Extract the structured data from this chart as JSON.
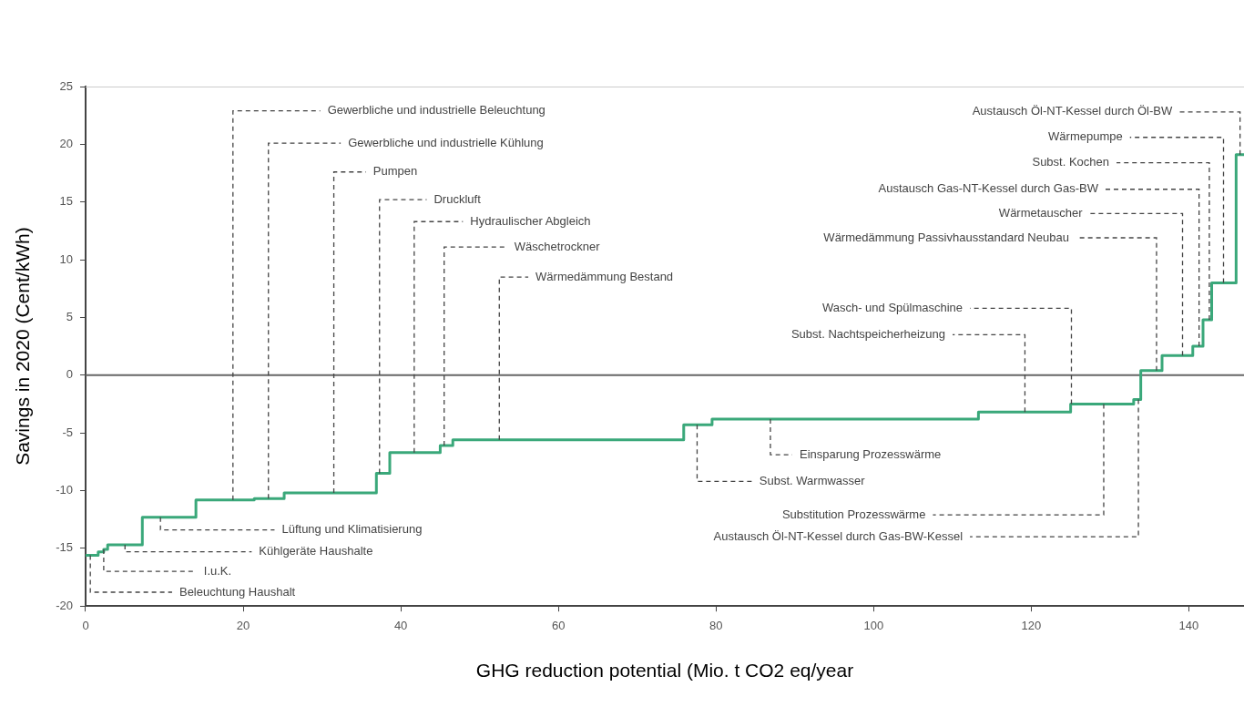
{
  "chart_data": {
    "type": "step",
    "xlabel": "GHG reduction potential (Mio. t CO2 eq/year",
    "ylabel": "Savings in 2020 (Cent/kWh)",
    "x": [
      0,
      1.6,
      2.3,
      2.8,
      5.0,
      7.2,
      9.5,
      14.0,
      21.4,
      25.2,
      31.5,
      36.9,
      38.6,
      41.7,
      45.0,
      46.6,
      52.5,
      75.9,
      79.5,
      86.9,
      113.3,
      119.2,
      125.0,
      133.0,
      133.6,
      133.9,
      135.9,
      136.6,
      139.2,
      140.5,
      141.3,
      141.8,
      142.6,
      142.9,
      144.4,
      146.0,
      147
    ],
    "series": [
      {
        "color": "#3aa87a",
        "values": [
          -15.6,
          -15.3,
          -15.1,
          -14.7,
          -14.7,
          -12.3,
          -12.3,
          -10.8,
          -10.7,
          -10.2,
          -10.2,
          -8.5,
          -6.7,
          -6.7,
          -6.1,
          -5.6,
          -5.6,
          -4.3,
          -3.8,
          -3.8,
          -3.2,
          -3.2,
          -2.5,
          -2.1,
          -2.1,
          0.4,
          0.4,
          1.7,
          1.7,
          2.5,
          2.5,
          4.8,
          4.8,
          8.0,
          8.0,
          19.1,
          19.1
        ]
      }
    ],
    "xlim": [
      0,
      147
    ],
    "xticks": [
      0,
      20,
      40,
      60,
      80,
      100,
      120,
      140
    ],
    "ylim": [
      -20,
      25
    ],
    "yticks": [
      -20,
      -15,
      -10,
      -5,
      0,
      5,
      10,
      15,
      20,
      25
    ],
    "grid": false,
    "legend": false,
    "marker": "none",
    "line_style": "solid",
    "ref_lines": [
      {
        "axis": "y",
        "value": 0,
        "color": "#666666"
      }
    ],
    "annotations": [
      {
        "text": "Gewerbliche und industrielle Beleuchtung",
        "x": 18.7,
        "y": -10.8
      },
      {
        "text": "Gewerbliche und industrielle Kühlung",
        "x": 23.2,
        "y": -10.7
      },
      {
        "text": "Pumpen",
        "x": 31.5,
        "y": -10.2
      },
      {
        "text": "Druckluft",
        "x": 37.3,
        "y": -8.5
      },
      {
        "text": "Hydraulischer Abgleich",
        "x": 41.7,
        "y": -6.7
      },
      {
        "text": "Wäschetrockner",
        "x": 45.5,
        "y": -6.1
      },
      {
        "text": "Wärmedämmung Bestand",
        "x": 52.5,
        "y": -5.6
      },
      {
        "text": "Lüftung und Klimatisierung",
        "x": 9.5,
        "y": -12.3
      },
      {
        "text": "Kühlgeräte Haushalte",
        "x": 5.0,
        "y": -14.7
      },
      {
        "text": "I.u.K.",
        "x": 2.3,
        "y": -15.1
      },
      {
        "text": "Beleuchtung Haushalt",
        "x": 0.6,
        "y": -15.6
      },
      {
        "text": "Einsparung Prozesswärme",
        "x": 86.9,
        "y": -3.8
      },
      {
        "text": "Subst. Warmwasser",
        "x": 77.6,
        "y": -4.3
      },
      {
        "text": "Substitution Prozesswärme",
        "x": 129.2,
        "y": -2.5
      },
      {
        "text": "Austausch Öl-NT-Kessel durch Gas-BW-Kessel",
        "x": 133.6,
        "y": -2.1
      },
      {
        "text": "Subst. Nachtspeicherheizung",
        "x": 119.2,
        "y": -3.2
      },
      {
        "text": "Wasch- und Spülmaschine",
        "x": 125.1,
        "y": -2.5
      },
      {
        "text": "Wärmedämmung Passivhausstandard Neubau",
        "x": 135.9,
        "y": 0.4
      },
      {
        "text": "Wärmetauscher",
        "x": 139.2,
        "y": 1.7
      },
      {
        "text": "Austausch Gas-NT-Kessel durch Gas-BW",
        "x": 141.3,
        "y": 2.5
      },
      {
        "text": "Subst. Kochen",
        "x": 142.6,
        "y": 4.8
      },
      {
        "text": "Wärmepumpe",
        "x": 144.4,
        "y": 8.0
      },
      {
        "text": "Austausch Öl-NT-Kessel durch Öl-BW",
        "x": 146.5,
        "y": 19.1
      }
    ]
  }
}
